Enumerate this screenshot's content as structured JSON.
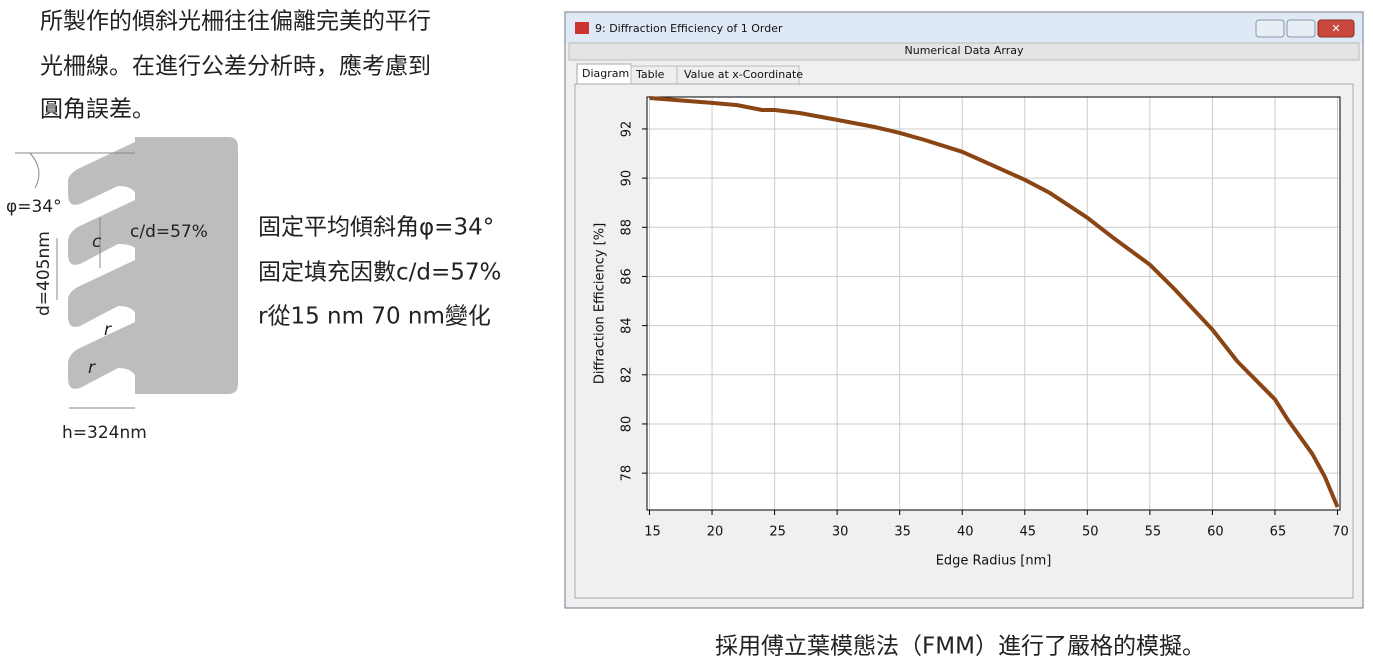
{
  "left_text": [
    "所製作的傾斜光柵往往偏離完美的平行",
    "光柵線。在進行公差分析時，應考慮到",
    "圓角誤差。"
  ],
  "diagram_labels": {
    "phi": "φ=34°",
    "c": "c",
    "cd": "c/d=57%",
    "d": "d=405nm",
    "r1": "r",
    "r2": "r",
    "h": "h=324nm"
  },
  "params": [
    "固定平均傾斜角φ=34°",
    "固定填充因數c/d=57%",
    "r從15 nm 70 nm變化"
  ],
  "window": {
    "title": "9: Diffraction Efficiency of 1 Order",
    "subheader": "Numerical Data Array",
    "tabs": [
      "Diagram",
      "Table",
      "Value at x-Coordinate"
    ]
  },
  "caption": "採用傅立葉模態法（FMM）進行了嚴格的模擬。",
  "chart_data": {
    "type": "line",
    "xlabel": "Edge Radius [nm]",
    "ylabel": "Diffraction Efficiency [%]",
    "x": [
      15,
      20,
      22,
      24,
      25,
      27,
      30,
      33,
      35,
      37,
      40,
      42,
      45,
      47,
      50,
      52,
      55,
      57,
      60,
      62,
      65,
      66,
      68,
      69,
      70
    ],
    "values": [
      93.26,
      93.06,
      92.97,
      92.77,
      92.77,
      92.65,
      92.37,
      92.08,
      91.84,
      91.55,
      91.07,
      90.62,
      89.93,
      89.4,
      88.39,
      87.6,
      86.48,
      85.47,
      83.84,
      82.54,
      81.0,
      80.19,
      78.77,
      77.84,
      76.62
    ],
    "color": "#8a4514",
    "xlim": [
      14.8,
      70.2
    ],
    "xticks": [
      15,
      20,
      25,
      30,
      35,
      40,
      45,
      50,
      55,
      60,
      65,
      70
    ],
    "ylim": [
      76.5,
      93.3
    ],
    "yticks": [
      78,
      80,
      82,
      84,
      86,
      88,
      90,
      92
    ],
    "grid": true
  }
}
